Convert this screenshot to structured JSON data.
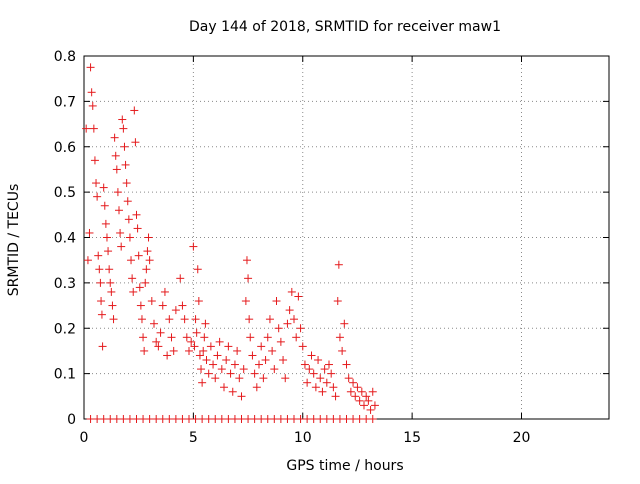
{
  "chart_data": {
    "type": "scatter",
    "title": "Day 144 of 2018, SRMTID for receiver maw1",
    "xlabel": "GPS time / hours",
    "ylabel": "SRMTID / TECUs",
    "xlim": [
      0,
      24
    ],
    "ylim": [
      0,
      0.8
    ],
    "x_ticks": [
      0,
      5,
      10,
      15,
      20
    ],
    "x_tick_labels": [
      "0",
      "5",
      "10",
      "15",
      "20"
    ],
    "y_ticks": [
      0,
      0.1,
      0.2,
      0.3,
      0.4,
      0.5,
      0.6,
      0.7,
      0.8
    ],
    "y_tick_labels": [
      "0",
      "0.1",
      "0.2",
      "0.3",
      "0.4",
      "0.5",
      "0.6",
      "0.7",
      "0.8"
    ],
    "grid": true,
    "marker": "+",
    "series": [
      {
        "name": "SRMTID",
        "color": "#e41a1c",
        "points": [
          [
            0.1,
            0.64
          ],
          [
            0.18,
            0.35
          ],
          [
            0.25,
            0.41
          ],
          [
            0.3,
            0.775
          ],
          [
            0.35,
            0.72
          ],
          [
            0.4,
            0.69
          ],
          [
            0.45,
            0.64
          ],
          [
            0.5,
            0.57
          ],
          [
            0.55,
            0.52
          ],
          [
            0.6,
            0.49
          ],
          [
            0.65,
            0.36
          ],
          [
            0.7,
            0.33
          ],
          [
            0.75,
            0.3
          ],
          [
            0.78,
            0.26
          ],
          [
            0.82,
            0.23
          ],
          [
            0.85,
            0.16
          ],
          [
            0.9,
            0.51
          ],
          [
            0.95,
            0.47
          ],
          [
            1.0,
            0.43
          ],
          [
            1.05,
            0.4
          ],
          [
            1.1,
            0.37
          ],
          [
            1.15,
            0.33
          ],
          [
            1.2,
            0.3
          ],
          [
            1.25,
            0.28
          ],
          [
            1.3,
            0.25
          ],
          [
            1.35,
            0.22
          ],
          [
            1.4,
            0.62
          ],
          [
            1.45,
            0.58
          ],
          [
            1.5,
            0.55
          ],
          [
            1.55,
            0.5
          ],
          [
            1.6,
            0.46
          ],
          [
            1.65,
            0.41
          ],
          [
            1.7,
            0.38
          ],
          [
            1.75,
            0.66
          ],
          [
            1.8,
            0.64
          ],
          [
            1.85,
            0.6
          ],
          [
            1.9,
            0.56
          ],
          [
            1.95,
            0.52
          ],
          [
            2.0,
            0.48
          ],
          [
            2.05,
            0.44
          ],
          [
            2.1,
            0.4
          ],
          [
            2.15,
            0.35
          ],
          [
            2.2,
            0.31
          ],
          [
            2.25,
            0.28
          ],
          [
            2.3,
            0.68
          ],
          [
            2.35,
            0.61
          ],
          [
            2.4,
            0.45
          ],
          [
            2.45,
            0.42
          ],
          [
            2.5,
            0.36
          ],
          [
            2.55,
            0.29
          ],
          [
            2.6,
            0.25
          ],
          [
            2.65,
            0.22
          ],
          [
            2.7,
            0.18
          ],
          [
            2.75,
            0.15
          ],
          [
            2.8,
            0.3
          ],
          [
            2.85,
            0.33
          ],
          [
            2.9,
            0.37
          ],
          [
            2.95,
            0.4
          ],
          [
            3.0,
            0.35
          ],
          [
            3.1,
            0.26
          ],
          [
            3.2,
            0.21
          ],
          [
            3.3,
            0.17
          ],
          [
            3.4,
            0.16
          ],
          [
            3.5,
            0.19
          ],
          [
            3.6,
            0.25
          ],
          [
            3.7,
            0.28
          ],
          [
            3.8,
            0.14
          ],
          [
            3.9,
            0.22
          ],
          [
            4.0,
            0.18
          ],
          [
            4.1,
            0.15
          ],
          [
            4.2,
            0.24
          ],
          [
            4.4,
            0.31
          ],
          [
            4.5,
            0.25
          ],
          [
            4.6,
            0.22
          ],
          [
            4.7,
            0.18
          ],
          [
            4.8,
            0.15
          ],
          [
            4.9,
            0.17
          ],
          [
            5.0,
            0.38
          ],
          [
            5.05,
            0.16
          ],
          [
            5.1,
            0.22
          ],
          [
            5.15,
            0.19
          ],
          [
            5.2,
            0.33
          ],
          [
            5.25,
            0.26
          ],
          [
            5.3,
            0.14
          ],
          [
            5.35,
            0.11
          ],
          [
            5.4,
            0.08
          ],
          [
            5.45,
            0.15
          ],
          [
            5.5,
            0.18
          ],
          [
            5.55,
            0.21
          ],
          [
            5.6,
            0.13
          ],
          [
            5.7,
            0.1
          ],
          [
            5.8,
            0.16
          ],
          [
            5.9,
            0.12
          ],
          [
            6.0,
            0.09
          ],
          [
            6.1,
            0.14
          ],
          [
            6.2,
            0.17
          ],
          [
            6.3,
            0.11
          ],
          [
            6.4,
            0.07
          ],
          [
            6.5,
            0.13
          ],
          [
            6.6,
            0.16
          ],
          [
            6.7,
            0.1
          ],
          [
            6.8,
            0.06
          ],
          [
            6.9,
            0.12
          ],
          [
            7.0,
            0.15
          ],
          [
            7.1,
            0.09
          ],
          [
            7.2,
            0.05
          ],
          [
            7.3,
            0.11
          ],
          [
            7.4,
            0.26
          ],
          [
            7.45,
            0.35
          ],
          [
            7.5,
            0.31
          ],
          [
            7.55,
            0.22
          ],
          [
            7.6,
            0.18
          ],
          [
            7.7,
            0.14
          ],
          [
            7.8,
            0.1
          ],
          [
            7.9,
            0.07
          ],
          [
            8.0,
            0.12
          ],
          [
            8.1,
            0.16
          ],
          [
            8.2,
            0.09
          ],
          [
            8.3,
            0.13
          ],
          [
            8.4,
            0.18
          ],
          [
            8.5,
            0.22
          ],
          [
            8.6,
            0.15
          ],
          [
            8.7,
            0.11
          ],
          [
            8.8,
            0.26
          ],
          [
            8.9,
            0.2
          ],
          [
            9.0,
            0.17
          ],
          [
            9.1,
            0.13
          ],
          [
            9.2,
            0.09
          ],
          [
            9.3,
            0.21
          ],
          [
            9.4,
            0.24
          ],
          [
            9.5,
            0.28
          ],
          [
            9.6,
            0.22
          ],
          [
            9.7,
            0.18
          ],
          [
            9.8,
            0.27
          ],
          [
            9.9,
            0.2
          ],
          [
            10.0,
            0.16
          ],
          [
            10.1,
            0.12
          ],
          [
            10.2,
            0.08
          ],
          [
            10.3,
            0.11
          ],
          [
            10.4,
            0.14
          ],
          [
            10.5,
            0.1
          ],
          [
            10.6,
            0.07
          ],
          [
            10.7,
            0.13
          ],
          [
            10.8,
            0.09
          ],
          [
            10.9,
            0.06
          ],
          [
            11.0,
            0.11
          ],
          [
            11.1,
            0.08
          ],
          [
            11.2,
            0.12
          ],
          [
            11.3,
            0.1
          ],
          [
            11.4,
            0.07
          ],
          [
            11.5,
            0.05
          ],
          [
            11.6,
            0.26
          ],
          [
            11.65,
            0.34
          ],
          [
            11.7,
            0.18
          ],
          [
            11.8,
            0.15
          ],
          [
            11.9,
            0.21
          ],
          [
            12.0,
            0.12
          ],
          [
            12.1,
            0.09
          ],
          [
            12.2,
            0.06
          ],
          [
            12.3,
            0.08
          ],
          [
            12.4,
            0.05
          ],
          [
            12.5,
            0.07
          ],
          [
            12.6,
            0.04
          ],
          [
            12.7,
            0.06
          ],
          [
            12.8,
            0.03
          ],
          [
            12.9,
            0.05
          ],
          [
            13.0,
            0.04
          ],
          [
            13.1,
            0.02
          ],
          [
            13.2,
            0.06
          ],
          [
            13.3,
            0.03
          ],
          [
            0.3,
            0.0
          ],
          [
            0.6,
            0.0
          ],
          [
            0.9,
            0.0
          ],
          [
            1.2,
            0.0
          ],
          [
            1.5,
            0.0
          ],
          [
            1.8,
            0.0
          ],
          [
            2.1,
            0.0
          ],
          [
            2.4,
            0.0
          ],
          [
            2.7,
            0.0
          ],
          [
            3.0,
            0.0
          ],
          [
            3.3,
            0.0
          ],
          [
            3.6,
            0.0
          ],
          [
            3.9,
            0.0
          ],
          [
            4.2,
            0.0
          ],
          [
            4.5,
            0.0
          ],
          [
            4.8,
            0.0
          ],
          [
            5.1,
            0.0
          ],
          [
            5.4,
            0.0
          ],
          [
            5.7,
            0.0
          ],
          [
            6.0,
            0.0
          ],
          [
            6.3,
            0.0
          ],
          [
            6.6,
            0.0
          ],
          [
            6.9,
            0.0
          ],
          [
            7.2,
            0.0
          ],
          [
            7.5,
            0.0
          ],
          [
            7.8,
            0.0
          ],
          [
            8.1,
            0.0
          ],
          [
            8.4,
            0.0
          ],
          [
            8.7,
            0.0
          ],
          [
            9.0,
            0.0
          ],
          [
            9.3,
            0.0
          ],
          [
            9.6,
            0.0
          ],
          [
            9.9,
            0.0
          ],
          [
            10.2,
            0.0
          ],
          [
            10.5,
            0.0
          ],
          [
            10.8,
            0.0
          ],
          [
            11.1,
            0.0
          ],
          [
            11.4,
            0.0
          ],
          [
            11.7,
            0.0
          ],
          [
            12.0,
            0.0
          ],
          [
            12.3,
            0.0
          ],
          [
            12.6,
            0.0
          ],
          [
            12.9,
            0.0
          ],
          [
            13.2,
            0.0
          ]
        ]
      }
    ]
  }
}
